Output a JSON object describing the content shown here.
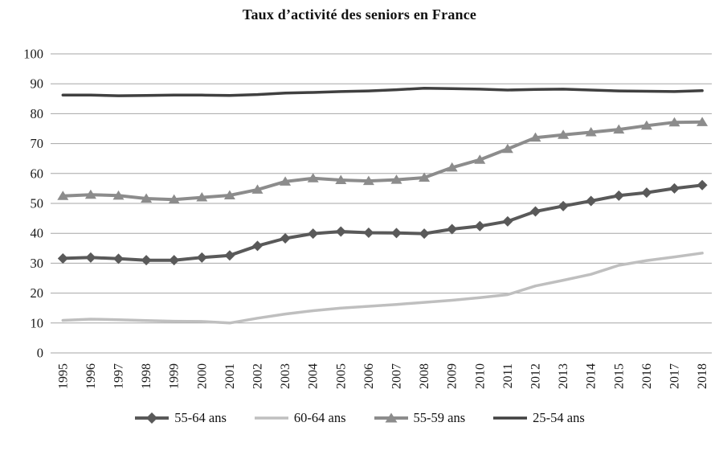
{
  "title": "Taux d’activité des seniors en France",
  "colors": {
    "series_55_64": "#595959",
    "series_60_64": "#bfbfbf",
    "series_55_59": "#8c8c8c",
    "series_25_54": "#404040",
    "gridline": "#a6a6a6",
    "text": "#1a1a1a",
    "background": "#ffffff"
  },
  "chart_data": {
    "type": "line",
    "title": "Taux d’activité des seniors en France",
    "xlabel": "",
    "ylabel": "",
    "ylim": [
      0,
      100
    ],
    "ytick_step": 10,
    "grid": true,
    "legend_position": "bottom",
    "x": [
      1995,
      1996,
      1997,
      1998,
      1999,
      2000,
      2001,
      2002,
      2003,
      2004,
      2005,
      2006,
      2007,
      2008,
      2009,
      2010,
      2011,
      2012,
      2013,
      2014,
      2015,
      2016,
      2017,
      2018
    ],
    "series": [
      {
        "name": "55-64 ans",
        "marker": "diamond",
        "color": "#595959",
        "line_width": 4,
        "values": [
          31.6,
          31.9,
          31.5,
          31.0,
          31.0,
          31.9,
          32.6,
          35.8,
          38.3,
          39.9,
          40.6,
          40.2,
          40.1,
          39.9,
          41.4,
          42.4,
          44.0,
          47.3,
          49.1,
          50.8,
          52.6,
          53.6,
          55.0,
          56.1
        ]
      },
      {
        "name": "60-64 ans",
        "marker": "none",
        "color": "#bfbfbf",
        "line_width": 3.5,
        "values": [
          10.9,
          11.3,
          11.1,
          10.8,
          10.6,
          10.5,
          10.0,
          11.6,
          13.0,
          14.1,
          15.0,
          15.6,
          16.2,
          16.9,
          17.6,
          18.5,
          19.5,
          22.4,
          24.3,
          26.3,
          29.3,
          30.9,
          32.1,
          33.4
        ]
      },
      {
        "name": "55-59 ans",
        "marker": "triangle",
        "color": "#8c8c8c",
        "line_width": 4,
        "values": [
          52.5,
          52.9,
          52.6,
          51.6,
          51.3,
          52.0,
          52.7,
          54.6,
          57.3,
          58.4,
          57.8,
          57.5,
          57.9,
          58.6,
          62.0,
          64.6,
          68.2,
          72.0,
          72.9,
          73.8,
          74.7,
          76.0,
          77.1,
          77.2
        ]
      },
      {
        "name": "25-54 ans",
        "marker": "none",
        "color": "#404040",
        "line_width": 3.5,
        "values": [
          86.2,
          86.2,
          86.0,
          86.1,
          86.2,
          86.2,
          86.1,
          86.4,
          86.9,
          87.1,
          87.4,
          87.6,
          88.0,
          88.5,
          88.4,
          88.2,
          87.9,
          88.1,
          88.2,
          87.9,
          87.6,
          87.5,
          87.4,
          87.7
        ]
      }
    ]
  }
}
